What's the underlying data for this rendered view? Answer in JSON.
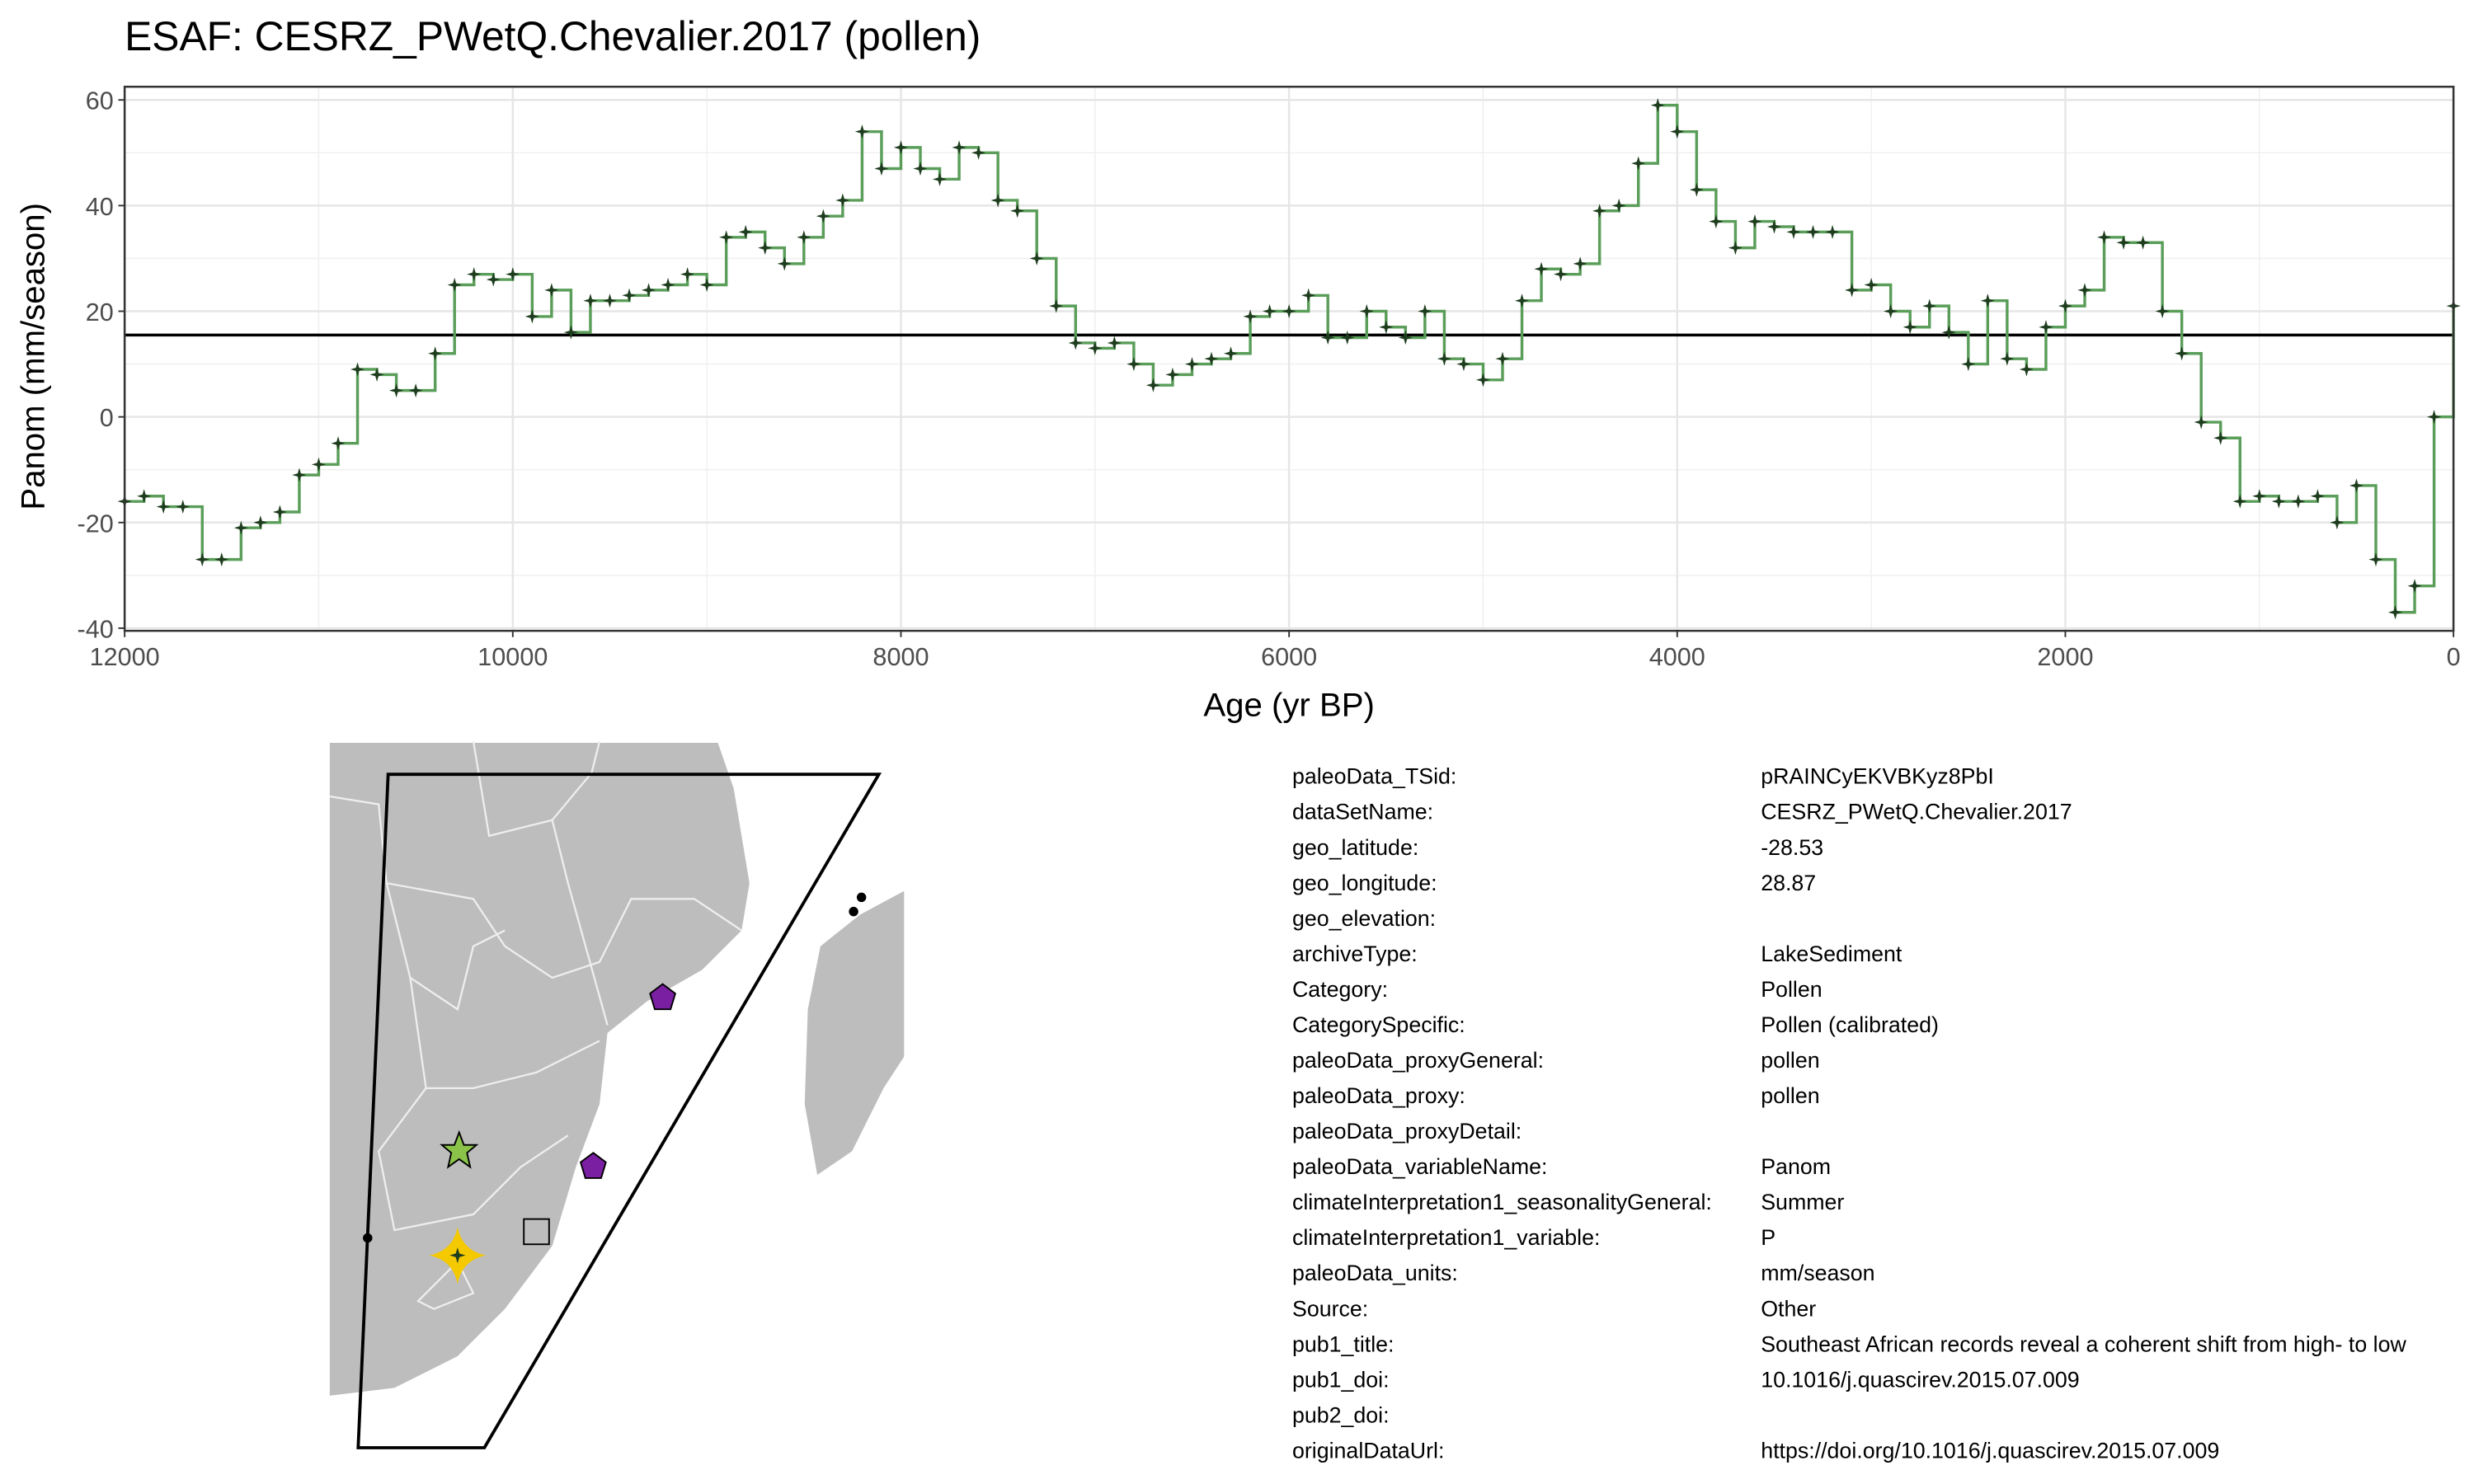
{
  "chart_data": {
    "type": "step",
    "title": "ESAF: CESRZ_PWetQ.Chevalier.2017 (pollen)",
    "x_label": "Age (yr BP)",
    "y_label": "Panom (mm/season)",
    "xlim": [
      12000,
      0
    ],
    "ylim": [
      -40.5,
      62.5
    ],
    "xticks": [
      12000,
      10000,
      8000,
      6000,
      4000,
      2000,
      0
    ],
    "yticks": [
      -40,
      -20,
      0,
      20,
      40,
      60
    ],
    "grid": true,
    "line_color": "#5a9e5a",
    "point_color": "#1e3d1e",
    "hline": 15.5,
    "x": [
      12000,
      11900,
      11800,
      11700,
      11600,
      11500,
      11400,
      11300,
      11200,
      11100,
      11000,
      10900,
      10800,
      10700,
      10600,
      10500,
      10400,
      10300,
      10200,
      10100,
      10000,
      9900,
      9800,
      9700,
      9600,
      9500,
      9400,
      9300,
      9200,
      9100,
      9000,
      8900,
      8800,
      8700,
      8600,
      8500,
      8400,
      8300,
      8200,
      8100,
      8000,
      7900,
      7800,
      7700,
      7600,
      7500,
      7400,
      7300,
      7200,
      7100,
      7000,
      6900,
      6800,
      6700,
      6600,
      6500,
      6400,
      6300,
      6200,
      6100,
      6000,
      5900,
      5800,
      5700,
      5600,
      5500,
      5400,
      5300,
      5200,
      5100,
      5000,
      4900,
      4800,
      4700,
      4600,
      4500,
      4400,
      4300,
      4200,
      4100,
      4000,
      3900,
      3800,
      3700,
      3600,
      3500,
      3400,
      3300,
      3200,
      3100,
      3000,
      2900,
      2800,
      2700,
      2600,
      2500,
      2400,
      2300,
      2200,
      2100,
      2000,
      1900,
      1800,
      1700,
      1600,
      1500,
      1400,
      1300,
      1200,
      1100,
      1000,
      900,
      800,
      700,
      600,
      500,
      400,
      300,
      200,
      100,
      0
    ],
    "values": [
      -16,
      -15,
      -17,
      -17,
      -27,
      -27,
      -21,
      -20,
      -18,
      -11,
      -9,
      -5,
      9,
      8,
      5,
      5,
      12,
      25,
      27,
      26,
      27,
      19,
      24,
      16,
      22,
      22,
      23,
      24,
      25,
      27,
      25,
      34,
      35,
      32,
      29,
      34,
      38,
      41,
      54,
      47,
      51,
      47,
      45,
      51,
      50,
      41,
      39,
      30,
      21,
      14,
      13,
      14,
      10,
      6,
      8,
      10,
      11,
      12,
      19,
      20,
      20,
      23,
      15,
      15,
      20,
      17,
      15,
      20,
      11,
      10,
      7,
      11,
      22,
      28,
      27,
      29,
      39,
      40,
      48,
      59,
      54,
      43,
      37,
      32,
      37,
      36,
      35,
      35,
      35,
      24,
      25,
      20,
      17,
      21,
      16,
      10,
      22,
      11,
      9,
      17,
      21,
      24,
      34,
      33,
      33,
      20,
      12,
      -1,
      -4,
      -16,
      -15,
      -16,
      -16,
      -15,
      -20,
      -13,
      -27,
      -37,
      -32,
      0,
      21
    ]
  },
  "metadata": {
    "keys": [
      "paleoData_TSid:",
      "dataSetName:",
      "geo_latitude:",
      "geo_longitude:",
      "geo_elevation:",
      "archiveType:",
      "Category:",
      "CategorySpecific:",
      "paleoData_proxyGeneral:",
      "paleoData_proxy:",
      "paleoData_proxyDetail:",
      "paleoData_variableName:",
      "climateInterpretation1_seasonalityGeneral:",
      "climateInterpretation1_variable:",
      "paleoData_units:",
      "Source:",
      "pub1_title:",
      "pub1_doi:",
      "pub2_doi:",
      "originalDataUrl:"
    ],
    "values": [
      "pRAINCyEKVBKyz8PbI",
      "CESRZ_PWetQ.Chevalier.2017",
      "-28.53",
      "28.87",
      null,
      "LakeSediment",
      "Pollen",
      "Pollen (calibrated)",
      "pollen",
      "pollen",
      null,
      "Panom",
      "Summer",
      "P",
      "mm/season",
      "Other",
      "Southeast African records reveal a coherent shift from high- to low",
      "10.1016/j.quascirev.2015.07.009",
      null,
      "https://doi.org/10.1016/j.quascirev.2015.07.009"
    ]
  }
}
